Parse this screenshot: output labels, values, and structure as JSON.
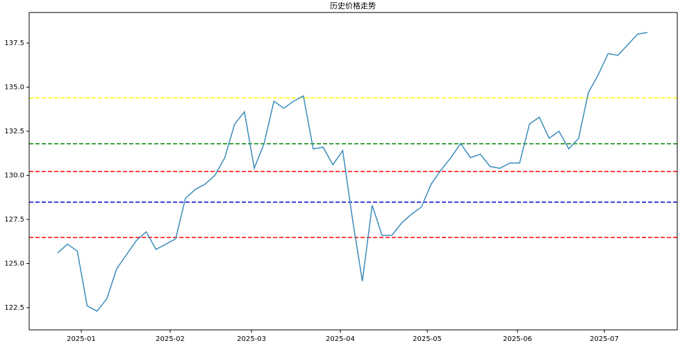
{
  "chart_data": {
    "type": "line",
    "title": "历史价格走势",
    "series": [
      {
        "color": "#3b8bba",
        "values": [
          125.6,
          126.1,
          125.7,
          122.6,
          122.3,
          123.0,
          124.7,
          125.5,
          126.3,
          126.8,
          125.8,
          126.1,
          126.4,
          128.7,
          129.2,
          129.5,
          130.0,
          131.0,
          132.9,
          133.6,
          130.4,
          131.8,
          134.2,
          133.8,
          134.2,
          134.5,
          131.5,
          131.6,
          130.6,
          131.4,
          127.5,
          124.0,
          128.3,
          126.6,
          126.6,
          127.3,
          127.8,
          128.2,
          129.5,
          130.3,
          131.0,
          131.8,
          131.0,
          131.2,
          130.5,
          130.4,
          130.7,
          130.7,
          132.9,
          133.3,
          132.1,
          132.5,
          131.5,
          132.1,
          134.7,
          135.7,
          136.9,
          136.8,
          137.4,
          138.0,
          138.1
        ]
      }
    ],
    "xlim": [
      -2.9,
      63.04
    ],
    "xticks": [
      {
        "value": 2.4,
        "label": "2025-01"
      },
      {
        "value": 11.45,
        "label": "2025-02"
      },
      {
        "value": 19.72,
        "label": "2025-03"
      },
      {
        "value": 28.76,
        "label": "2025-04"
      },
      {
        "value": 37.6,
        "label": "2025-05"
      },
      {
        "value": 46.78,
        "label": "2025-06"
      },
      {
        "value": 55.62,
        "label": "2025-07"
      }
    ],
    "ylim": [
      121.24,
      139.23
    ],
    "yticks": [
      122.5,
      {
        "value": 125,
        "label": "125.0"
      },
      127.5,
      {
        "value": 130,
        "label": "130.0"
      },
      132.5,
      {
        "value": 135,
        "label": "135.0"
      },
      137.5
    ],
    "hlines": [
      {
        "value": 134.39,
        "color": "#ffff00"
      },
      {
        "value": 131.79,
        "color": "#008000"
      },
      {
        "value": 130.22,
        "color": "#ff0000"
      },
      {
        "value": 128.48,
        "color": "#0000cc"
      },
      {
        "value": 126.48,
        "color": "#ff0000"
      }
    ]
  }
}
